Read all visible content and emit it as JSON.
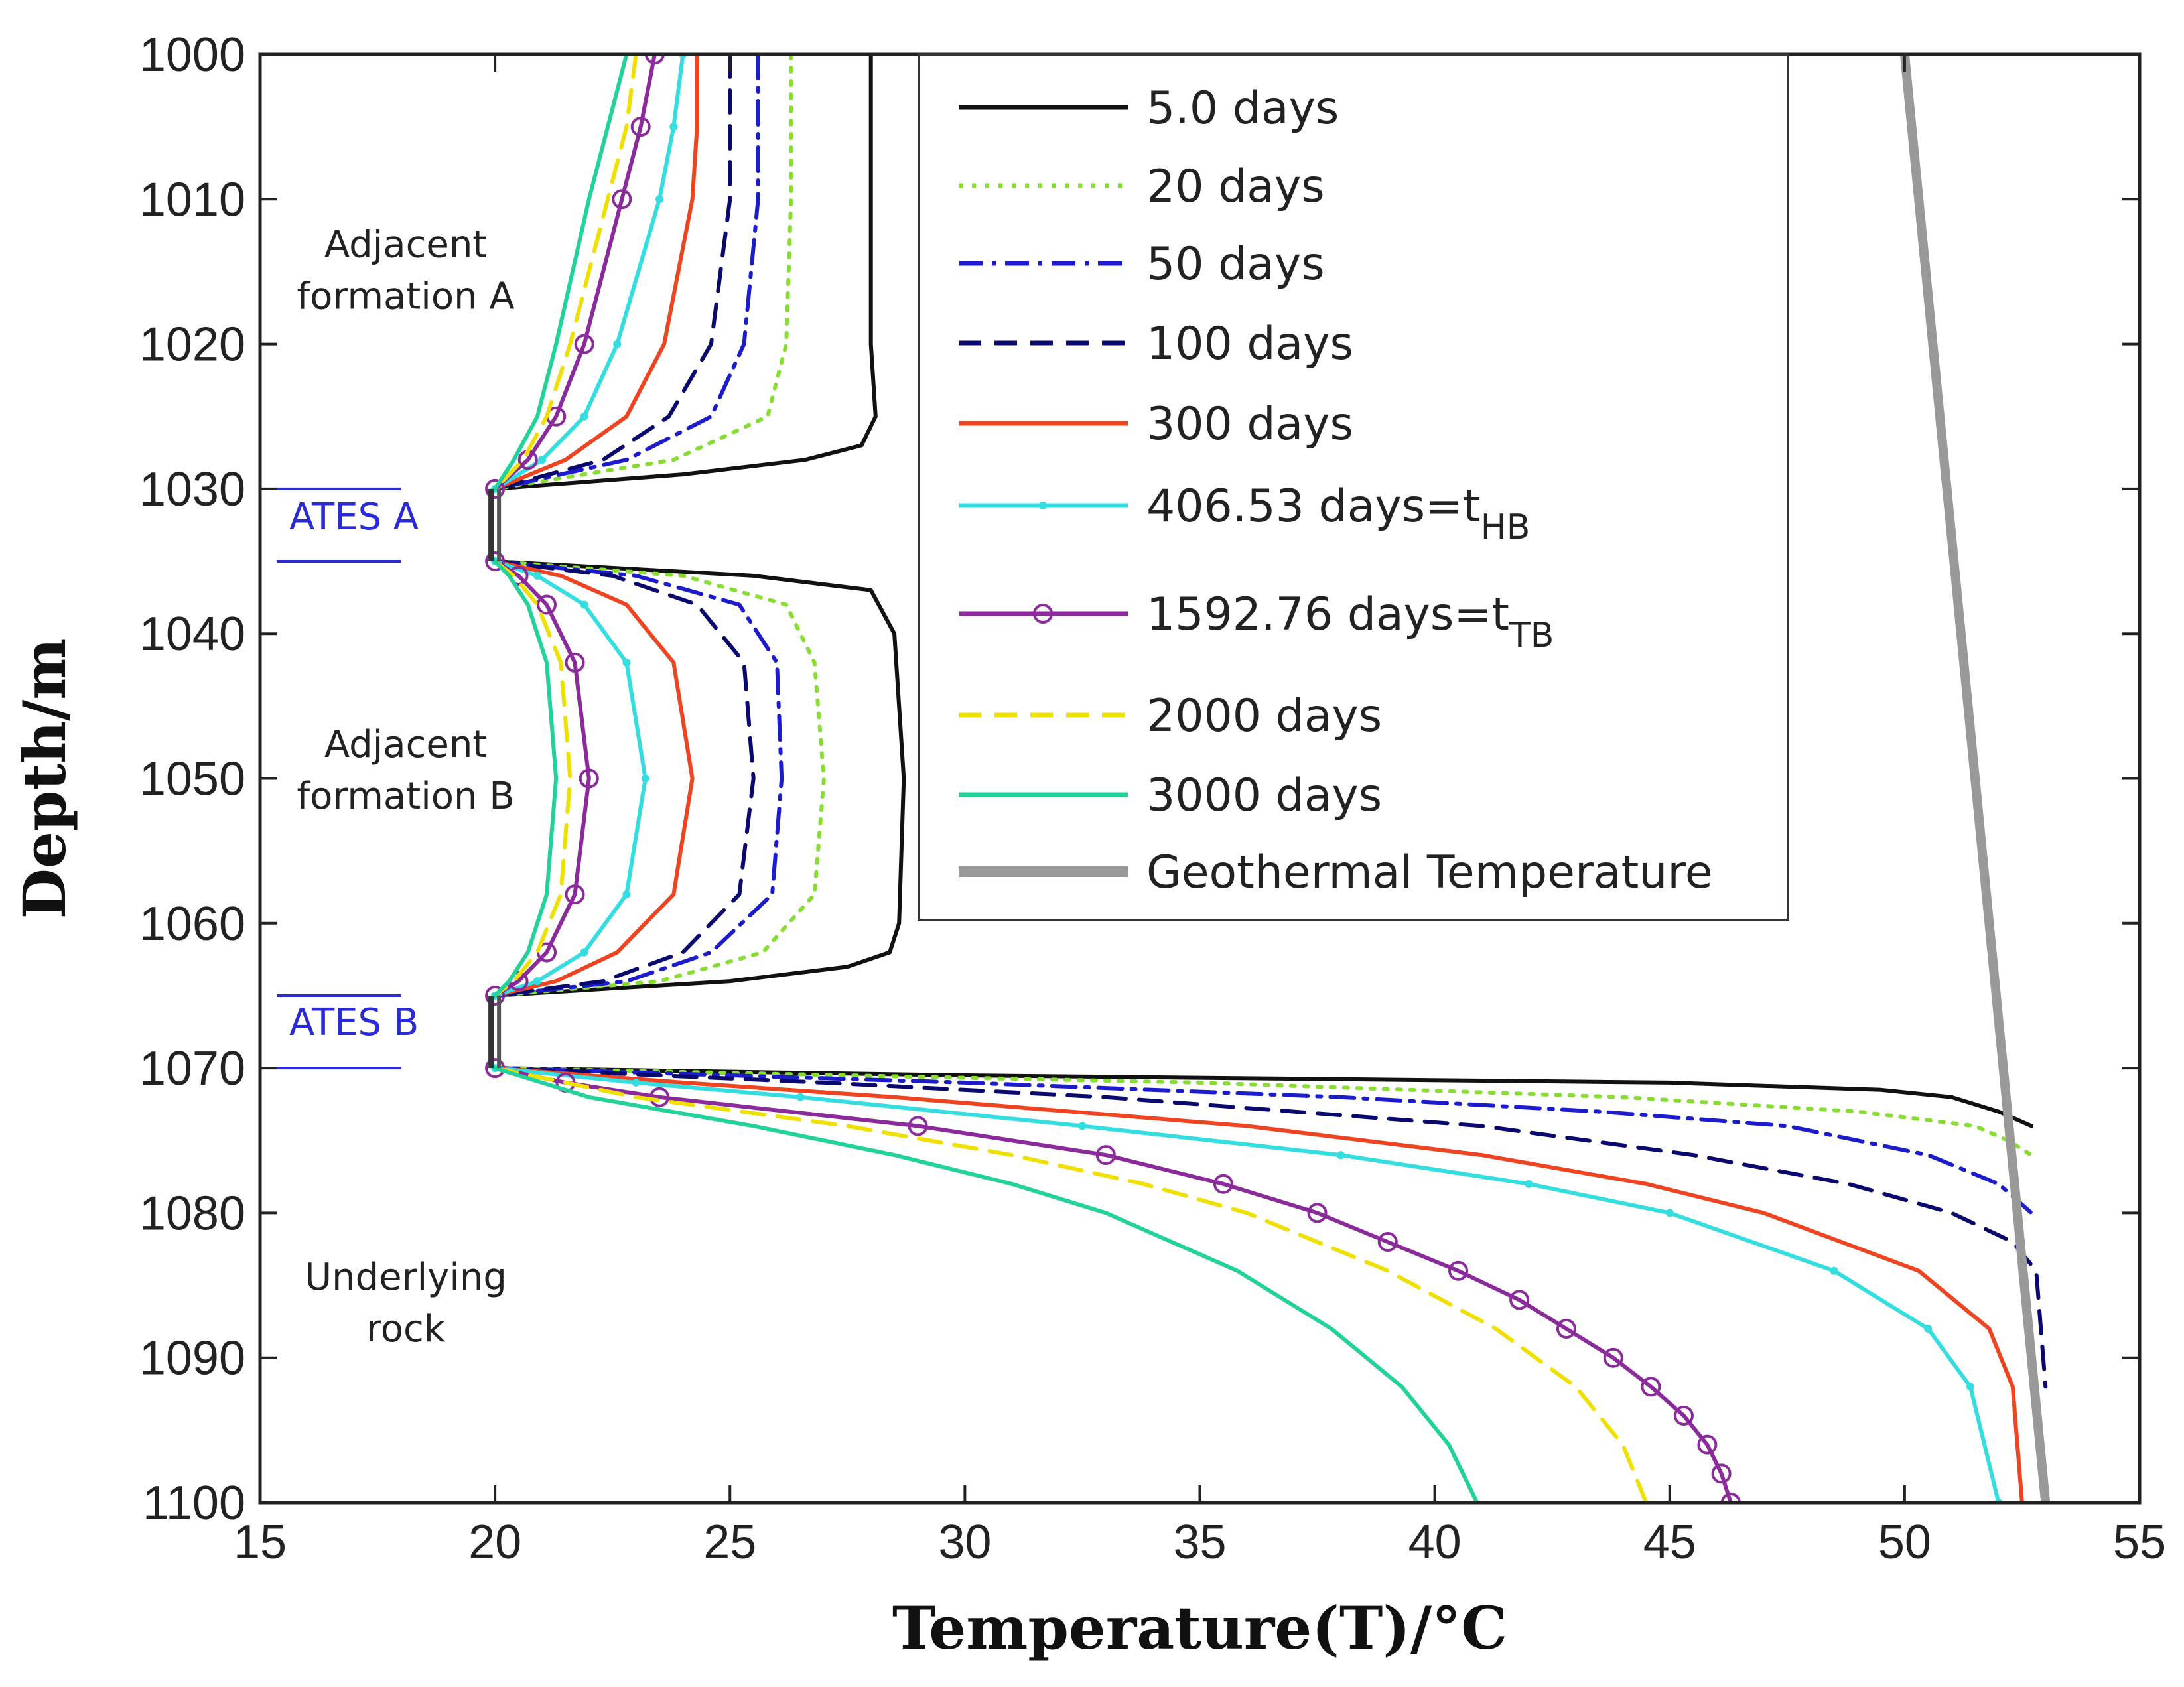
{
  "chart_data": {
    "type": "line",
    "title": "",
    "xlabel": "Temperature(T)/°C",
    "ylabel": "Depth/m",
    "xlim": [
      15,
      55
    ],
    "ylim": [
      1000,
      1100
    ],
    "y_inverted": true,
    "grid": false,
    "legend_position": "top-right",
    "xticks": [
      15,
      20,
      25,
      30,
      35,
      40,
      45,
      50,
      55
    ],
    "yticks": [
      1000,
      1010,
      1020,
      1030,
      1040,
      1050,
      1060,
      1070,
      1080,
      1090,
      1100
    ],
    "annotations": [
      {
        "text": [
          "Adjacent",
          "formation A"
        ],
        "x": 18.1,
        "y": 1014
      },
      {
        "text": [
          "Adjacent",
          "formation B"
        ],
        "x": 18.1,
        "y": 1048.5
      },
      {
        "text": [
          "Underlying",
          "rock"
        ],
        "x": 18.1,
        "y": 1085.3
      },
      {
        "text": [
          "ATES A"
        ],
        "x": 17.0,
        "y": 1032.8,
        "bounds": [
          1030,
          1035
        ]
      },
      {
        "text": [
          "ATES B"
        ],
        "x": 17.0,
        "y": 1067.7,
        "bounds": [
          1065,
          1070
        ]
      }
    ],
    "series": [
      {
        "name": "5.0 days",
        "color": "#111111",
        "style": "solid",
        "temp": [
          [
            [
              1000,
              28.0
            ],
            [
              1010,
              28.0
            ],
            [
              1020,
              28.0
            ],
            [
              1025,
              28.1
            ],
            [
              1027,
              27.8
            ],
            [
              1028,
              26.6
            ],
            [
              1029,
              24.0
            ],
            [
              1030,
              20.0
            ]
          ],
          [
            [
              1035,
              20.0
            ],
            [
              1036,
              25.5
            ],
            [
              1037,
              28.0
            ],
            [
              1040,
              28.5
            ],
            [
              1050,
              28.7
            ],
            [
              1060,
              28.6
            ],
            [
              1062,
              28.4
            ],
            [
              1063,
              27.5
            ],
            [
              1064,
              25.0
            ],
            [
              1065,
              20.0
            ]
          ],
          [
            [
              1070,
              20.0
            ],
            [
              1070.5,
              30.0
            ],
            [
              1071,
              45.0
            ],
            [
              1071.5,
              49.5
            ],
            [
              1072,
              51.0
            ],
            [
              1073,
              52.0
            ],
            [
              1074,
              52.7
            ]
          ]
        ]
      },
      {
        "name": "20 days",
        "color": "#88dd33",
        "style": "dotted",
        "temp": [
          [
            [
              1000,
              26.3
            ],
            [
              1010,
              26.3
            ],
            [
              1020,
              26.2
            ],
            [
              1025,
              25.8
            ],
            [
              1028,
              23.8
            ],
            [
              1030,
              20.0
            ]
          ],
          [
            [
              1035,
              20.0
            ],
            [
              1036,
              24.0
            ],
            [
              1038,
              26.2
            ],
            [
              1042,
              26.8
            ],
            [
              1050,
              27.0
            ],
            [
              1058,
              26.8
            ],
            [
              1062,
              25.7
            ],
            [
              1064,
              23.5
            ],
            [
              1065,
              20.0
            ]
          ],
          [
            [
              1070,
              20.0
            ],
            [
              1071,
              35.0
            ],
            [
              1072,
              44.0
            ],
            [
              1073,
              49.0
            ],
            [
              1074,
              51.5
            ],
            [
              1075,
              52.2
            ],
            [
              1076,
              52.7
            ]
          ]
        ]
      },
      {
        "name": "50 days",
        "color": "#1c1ccc",
        "style": "dashdot",
        "temp": [
          [
            [
              1000,
              25.6
            ],
            [
              1010,
              25.6
            ],
            [
              1020,
              25.3
            ],
            [
              1025,
              24.6
            ],
            [
              1028,
              22.8
            ],
            [
              1030,
              20.0
            ]
          ],
          [
            [
              1035,
              20.0
            ],
            [
              1036,
              23.0
            ],
            [
              1038,
              25.2
            ],
            [
              1042,
              26.0
            ],
            [
              1050,
              26.1
            ],
            [
              1058,
              25.9
            ],
            [
              1062,
              24.6
            ],
            [
              1064,
              22.8
            ],
            [
              1065,
              20.0
            ]
          ],
          [
            [
              1070,
              20.0
            ],
            [
              1071,
              30.0
            ],
            [
              1072,
              38.0
            ],
            [
              1073,
              43.5
            ],
            [
              1074,
              47.5
            ],
            [
              1076,
              50.5
            ],
            [
              1078,
              52.0
            ],
            [
              1080,
              52.7
            ]
          ]
        ]
      },
      {
        "name": "100 days",
        "color": "#0a0a6e",
        "style": "dashed",
        "temp": [
          [
            [
              1000,
              25.0
            ],
            [
              1010,
              25.0
            ],
            [
              1020,
              24.6
            ],
            [
              1025,
              23.7
            ],
            [
              1028,
              22.3
            ],
            [
              1030,
              20.0
            ]
          ],
          [
            [
              1035,
              20.0
            ],
            [
              1036,
              22.5
            ],
            [
              1038,
              24.3
            ],
            [
              1042,
              25.3
            ],
            [
              1050,
              25.5
            ],
            [
              1058,
              25.2
            ],
            [
              1062,
              24.0
            ],
            [
              1064,
              22.3
            ],
            [
              1065,
              20.0
            ]
          ],
          [
            [
              1070,
              20.0
            ],
            [
              1071,
              27.0
            ],
            [
              1072,
              33.0
            ],
            [
              1074,
              41.0
            ],
            [
              1076,
              45.5
            ],
            [
              1078,
              48.8
            ],
            [
              1080,
              51.0
            ],
            [
              1082,
              52.3
            ],
            [
              1084,
              52.8
            ],
            [
              1092,
              53.0
            ]
          ]
        ]
      },
      {
        "name": "300 days",
        "color": "#ee4422",
        "style": "solid",
        "temp": [
          [
            [
              1000,
              24.3
            ],
            [
              1005,
              24.3
            ],
            [
              1010,
              24.2
            ],
            [
              1020,
              23.6
            ],
            [
              1025,
              22.8
            ],
            [
              1028,
              21.5
            ],
            [
              1030,
              20.0
            ]
          ],
          [
            [
              1035,
              20.0
            ],
            [
              1036,
              21.4
            ],
            [
              1038,
              22.8
            ],
            [
              1042,
              23.8
            ],
            [
              1050,
              24.2
            ],
            [
              1058,
              23.8
            ],
            [
              1062,
              22.6
            ],
            [
              1064,
              21.3
            ],
            [
              1065,
              20.0
            ]
          ],
          [
            [
              1070,
              20.0
            ],
            [
              1071,
              24.0
            ],
            [
              1072,
              28.5
            ],
            [
              1074,
              36.0
            ],
            [
              1076,
              41.0
            ],
            [
              1078,
              44.5
            ],
            [
              1080,
              47.0
            ],
            [
              1084,
              50.3
            ],
            [
              1088,
              51.8
            ],
            [
              1092,
              52.3
            ],
            [
              1100,
              52.5
            ]
          ]
        ]
      },
      {
        "name": "406.53 days=t",
        "sub": "HB",
        "color": "#33dde0",
        "style": "solid",
        "marker": "dot",
        "temp": [
          [
            [
              1000,
              24.0
            ],
            [
              1005,
              23.8
            ],
            [
              1010,
              23.5
            ],
            [
              1020,
              22.6
            ],
            [
              1025,
              21.9
            ],
            [
              1028,
              21.0
            ],
            [
              1030,
              20.0
            ]
          ],
          [
            [
              1035,
              20.0
            ],
            [
              1036,
              20.9
            ],
            [
              1038,
              21.9
            ],
            [
              1042,
              22.8
            ],
            [
              1050,
              23.2
            ],
            [
              1058,
              22.8
            ],
            [
              1062,
              21.9
            ],
            [
              1064,
              20.9
            ],
            [
              1065,
              20.0
            ]
          ],
          [
            [
              1070,
              20.0
            ],
            [
              1071,
              23.0
            ],
            [
              1072,
              26.5
            ],
            [
              1074,
              32.5
            ],
            [
              1076,
              38.0
            ],
            [
              1078,
              42.0
            ],
            [
              1080,
              45.0
            ],
            [
              1084,
              48.5
            ],
            [
              1088,
              50.5
            ],
            [
              1092,
              51.4
            ],
            [
              1100,
              52.0
            ]
          ]
        ]
      },
      {
        "name": "1592.76 days=t",
        "sub": "TB",
        "color": "#8b2a9a",
        "style": "solid",
        "marker": "circle",
        "temp": [
          [
            [
              1000,
              23.4
            ],
            [
              1005,
              23.1
            ],
            [
              1010,
              22.7
            ],
            [
              1020,
              21.9
            ],
            [
              1025,
              21.3
            ],
            [
              1028,
              20.7
            ],
            [
              1030,
              20.0
            ]
          ],
          [
            [
              1035,
              20.0
            ],
            [
              1036,
              20.5
            ],
            [
              1038,
              21.1
            ],
            [
              1042,
              21.7
            ],
            [
              1050,
              22.0
            ],
            [
              1058,
              21.7
            ],
            [
              1062,
              21.1
            ],
            [
              1064,
              20.5
            ],
            [
              1065,
              20.0
            ]
          ],
          [
            [
              1070,
              20.0
            ],
            [
              1071,
              21.5
            ],
            [
              1072,
              23.5
            ],
            [
              1074,
              29.0
            ],
            [
              1076,
              33.0
            ],
            [
              1078,
              35.5
            ],
            [
              1080,
              37.5
            ],
            [
              1082,
              39.0
            ],
            [
              1084,
              40.5
            ],
            [
              1086,
              41.8
            ],
            [
              1088,
              42.8
            ],
            [
              1090,
              43.8
            ],
            [
              1092,
              44.6
            ],
            [
              1094,
              45.3
            ],
            [
              1096,
              45.8
            ],
            [
              1098,
              46.1
            ],
            [
              1100,
              46.3
            ]
          ]
        ]
      },
      {
        "name": "2000 days",
        "color": "#f0e000",
        "style": "dashed",
        "temp": [
          [
            [
              1000,
              23.0
            ],
            [
              1005,
              22.8
            ],
            [
              1010,
              22.4
            ],
            [
              1020,
              21.6
            ],
            [
              1025,
              21.1
            ],
            [
              1028,
              20.6
            ],
            [
              1030,
              20.0
            ]
          ],
          [
            [
              1035,
              20.0
            ],
            [
              1036,
              20.4
            ],
            [
              1038,
              20.9
            ],
            [
              1042,
              21.4
            ],
            [
              1050,
              21.6
            ],
            [
              1058,
              21.4
            ],
            [
              1062,
              20.9
            ],
            [
              1064,
              20.4
            ],
            [
              1065,
              20.0
            ]
          ],
          [
            [
              1070,
              20.0
            ],
            [
              1072,
              23.0
            ],
            [
              1074,
              27.5
            ],
            [
              1076,
              31.0
            ],
            [
              1078,
              33.8
            ],
            [
              1080,
              36.0
            ],
            [
              1084,
              39.0
            ],
            [
              1088,
              41.3
            ],
            [
              1092,
              43.0
            ],
            [
              1096,
              44.0
            ],
            [
              1100,
              44.5
            ]
          ]
        ]
      },
      {
        "name": "3000 days",
        "color": "#22d29a",
        "style": "solid",
        "temp": [
          [
            [
              1000,
              22.8
            ],
            [
              1005,
              22.4
            ],
            [
              1010,
              22.0
            ],
            [
              1020,
              21.3
            ],
            [
              1025,
              20.9
            ],
            [
              1028,
              20.4
            ],
            [
              1030,
              20.0
            ]
          ],
          [
            [
              1035,
              20.0
            ],
            [
              1036,
              20.3
            ],
            [
              1038,
              20.7
            ],
            [
              1042,
              21.1
            ],
            [
              1050,
              21.3
            ],
            [
              1058,
              21.1
            ],
            [
              1062,
              20.7
            ],
            [
              1064,
              20.3
            ],
            [
              1065,
              20.0
            ]
          ],
          [
            [
              1070,
              20.0
            ],
            [
              1072,
              22.0
            ],
            [
              1074,
              25.5
            ],
            [
              1076,
              28.5
            ],
            [
              1078,
              31.0
            ],
            [
              1080,
              33.0
            ],
            [
              1084,
              35.8
            ],
            [
              1088,
              37.8
            ],
            [
              1092,
              39.3
            ],
            [
              1096,
              40.3
            ],
            [
              1100,
              40.9
            ]
          ]
        ]
      },
      {
        "name": "Geothermal Temperature",
        "color": "#999999",
        "style": "thick",
        "temp": [
          [
            [
              1000,
              50.0
            ],
            [
              1100,
              53.0
            ]
          ]
        ]
      }
    ]
  }
}
